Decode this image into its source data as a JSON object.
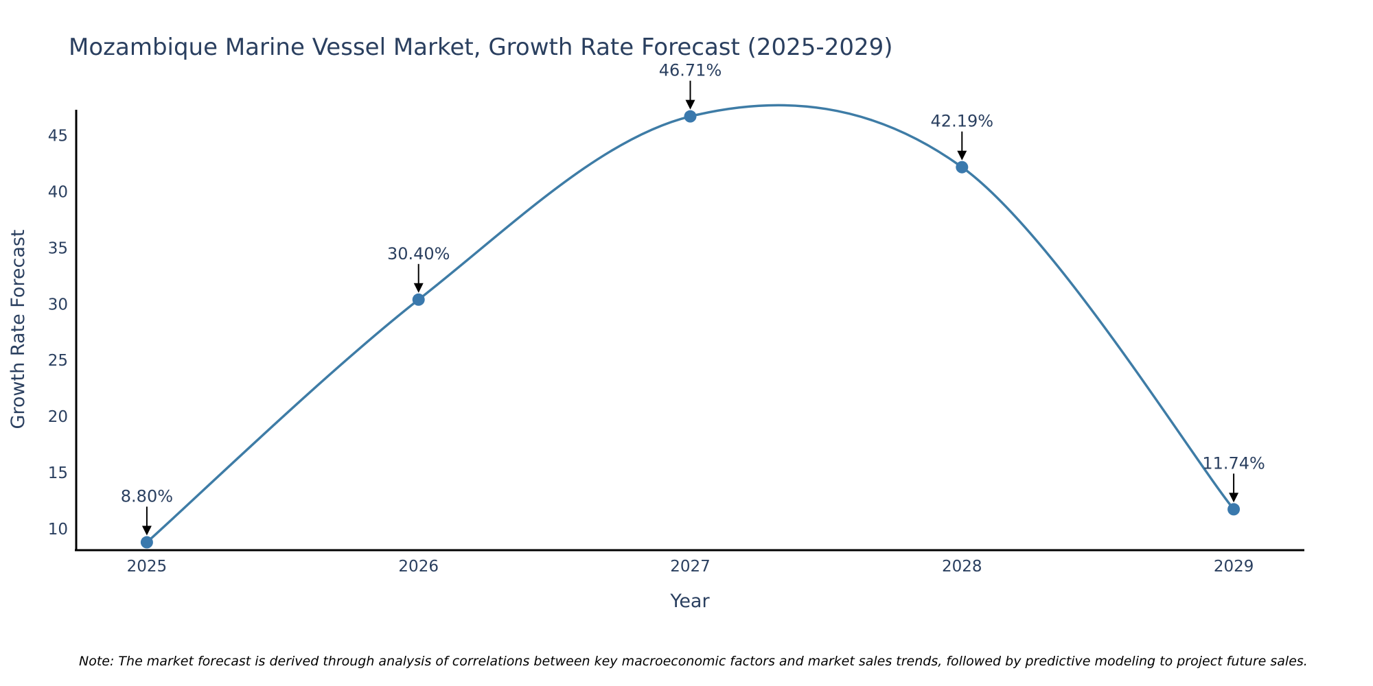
{
  "chart_data": {
    "type": "line",
    "title": "Mozambique Marine Vessel Market, Growth Rate Forecast (2025-2029)",
    "xlabel": "Year",
    "ylabel": "Growth Rate Forecast",
    "categories": [
      "2025",
      "2026",
      "2027",
      "2028",
      "2029"
    ],
    "series": [
      {
        "name": "Growth Rate Forecast",
        "values": [
          8.8,
          30.4,
          46.71,
          42.19,
          11.74
        ],
        "color": "#3e7ca6",
        "marker_color": "#3a79ad"
      }
    ],
    "data_labels": [
      "8.80%",
      "30.40%",
      "46.71%",
      "42.19%",
      "11.74%"
    ],
    "yticks": [
      10,
      15,
      20,
      25,
      30,
      35,
      40,
      45
    ],
    "ylim": [
      8.1,
      47.3
    ],
    "xlim": [
      -0.26,
      4.26
    ],
    "grid": false,
    "line_shape": "spline",
    "note": "Note: The market forecast is derived through analysis of correlations between key macroeconomic factors and market sales trends, followed by predictive modeling to project future sales."
  }
}
